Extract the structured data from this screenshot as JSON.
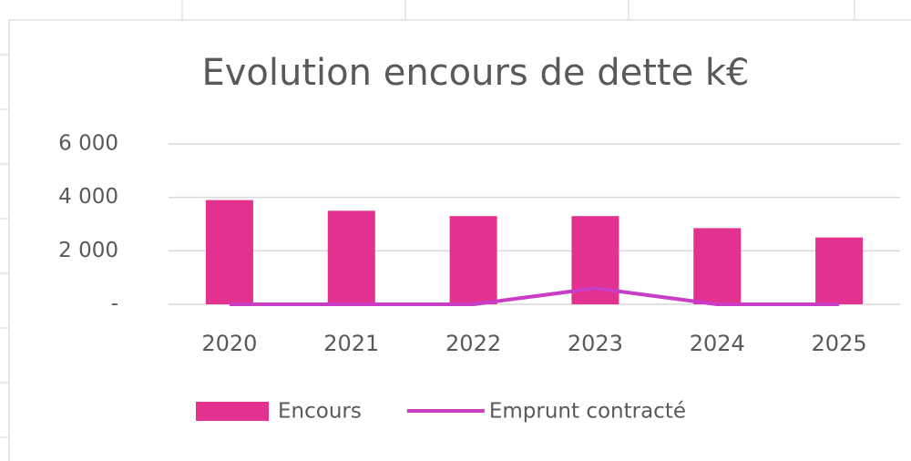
{
  "chart_data": {
    "type": "bar",
    "title": "Evolution encours de dette k€",
    "categories": [
      "2020",
      "2021",
      "2022",
      "2023",
      "2024",
      "2025"
    ],
    "series": [
      {
        "name": "Encours",
        "type": "bar",
        "color": "#e3318f",
        "values": [
          3900,
          3500,
          3300,
          3300,
          2850,
          2500
        ]
      },
      {
        "name": "Emprunt contracté",
        "type": "line",
        "color": "#c93cc6",
        "values": [
          0,
          0,
          0,
          600,
          0,
          0
        ]
      }
    ],
    "ylim": [
      0,
      6000
    ],
    "yticks": [
      {
        "value": 0,
        "label": "-"
      },
      {
        "value": 2000,
        "label": "2 000"
      },
      {
        "value": 4000,
        "label": "4 000"
      },
      {
        "value": 6000,
        "label": "6 000"
      }
    ],
    "grid": true,
    "legend": "bottom"
  }
}
